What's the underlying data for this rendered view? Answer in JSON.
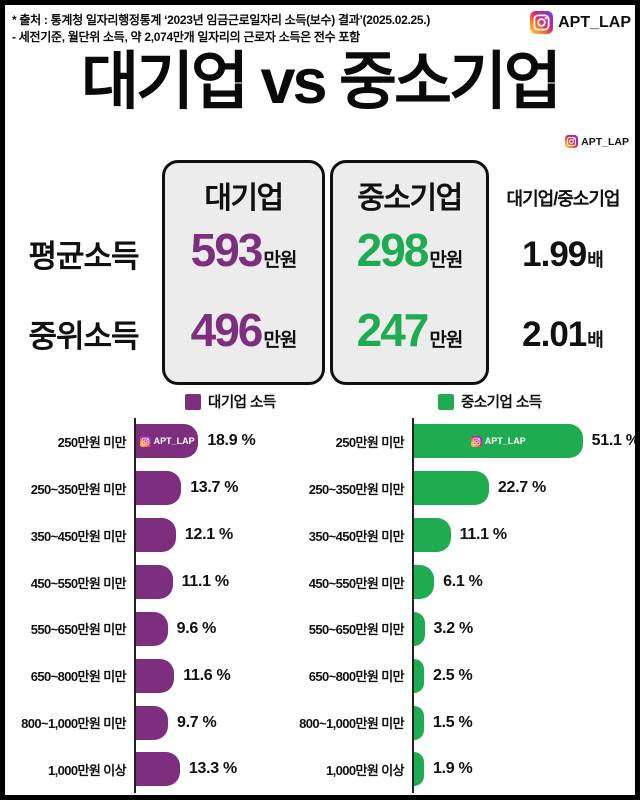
{
  "header": {
    "source_line1": "* 출처 : 통계청 일자리행정통계 ‘2023년 임금근로일자리 소득(보수) 결과’(2025.02.25.)",
    "source_line2": "- 세전기준, 월단위 소득, 약 2,074만개 일자리의 근로자 소득은 전수 포함",
    "handle": "APT_LAP"
  },
  "title": "대기업 vs 중소기업",
  "title_badge_handle": "APT_LAP",
  "comparison": {
    "columns": {
      "large": "대기업",
      "small": "중소기업",
      "ratio": "대기업/중소기업"
    },
    "rows": [
      {
        "label": "평균소득",
        "large": "593",
        "small": "298",
        "unit": "만원",
        "ratio": "1.99",
        "ratio_unit": "배"
      },
      {
        "label": "중위소득",
        "large": "496",
        "small": "247",
        "unit": "만원",
        "ratio": "2.01",
        "ratio_unit": "배"
      }
    ]
  },
  "legend": [
    {
      "label": "대기업 소득",
      "color": "#7d2e7e"
    },
    {
      "label": "중소기업 소득",
      "color": "#1fab4f"
    }
  ],
  "chart_data": [
    {
      "type": "bar",
      "orientation": "horizontal",
      "title": "대기업 소득",
      "unit": "%",
      "color": "#7d2e7e",
      "watermark": "APT_LAP",
      "categories": [
        "250만원 미만",
        "250~350만원 미만",
        "350~450만원 미만",
        "450~550만원 미만",
        "550~650만원 미만",
        "650~800만원 미만",
        "800~1,000만원 미만",
        "1,000만원 이상"
      ],
      "values": [
        18.9,
        13.7,
        12.1,
        11.1,
        9.6,
        11.6,
        9.7,
        13.3
      ],
      "xlim": [
        0,
        55
      ],
      "grid": false,
      "value_labels": true
    },
    {
      "type": "bar",
      "orientation": "horizontal",
      "title": "중소기업 소득",
      "unit": "%",
      "color": "#1fab4f",
      "watermark": "APT_LAP",
      "categories": [
        "250만원 미만",
        "250~350만원 미만",
        "350~450만원 미만",
        "450~550만원 미만",
        "550~650만원 미만",
        "650~800만원 미만",
        "800~1,000만원 미만",
        "1,000만원 이상"
      ],
      "values": [
        51.1,
        22.7,
        11.1,
        6.1,
        3.2,
        2.5,
        1.5,
        1.9
      ],
      "xlim": [
        0,
        55
      ],
      "grid": false,
      "value_labels": true
    }
  ],
  "colors": {
    "large": "#7d2e7e",
    "small": "#1fab4f",
    "box_background": "#ececec",
    "text": "#111111",
    "background": "#ffffff",
    "frame_border": "#000000"
  }
}
